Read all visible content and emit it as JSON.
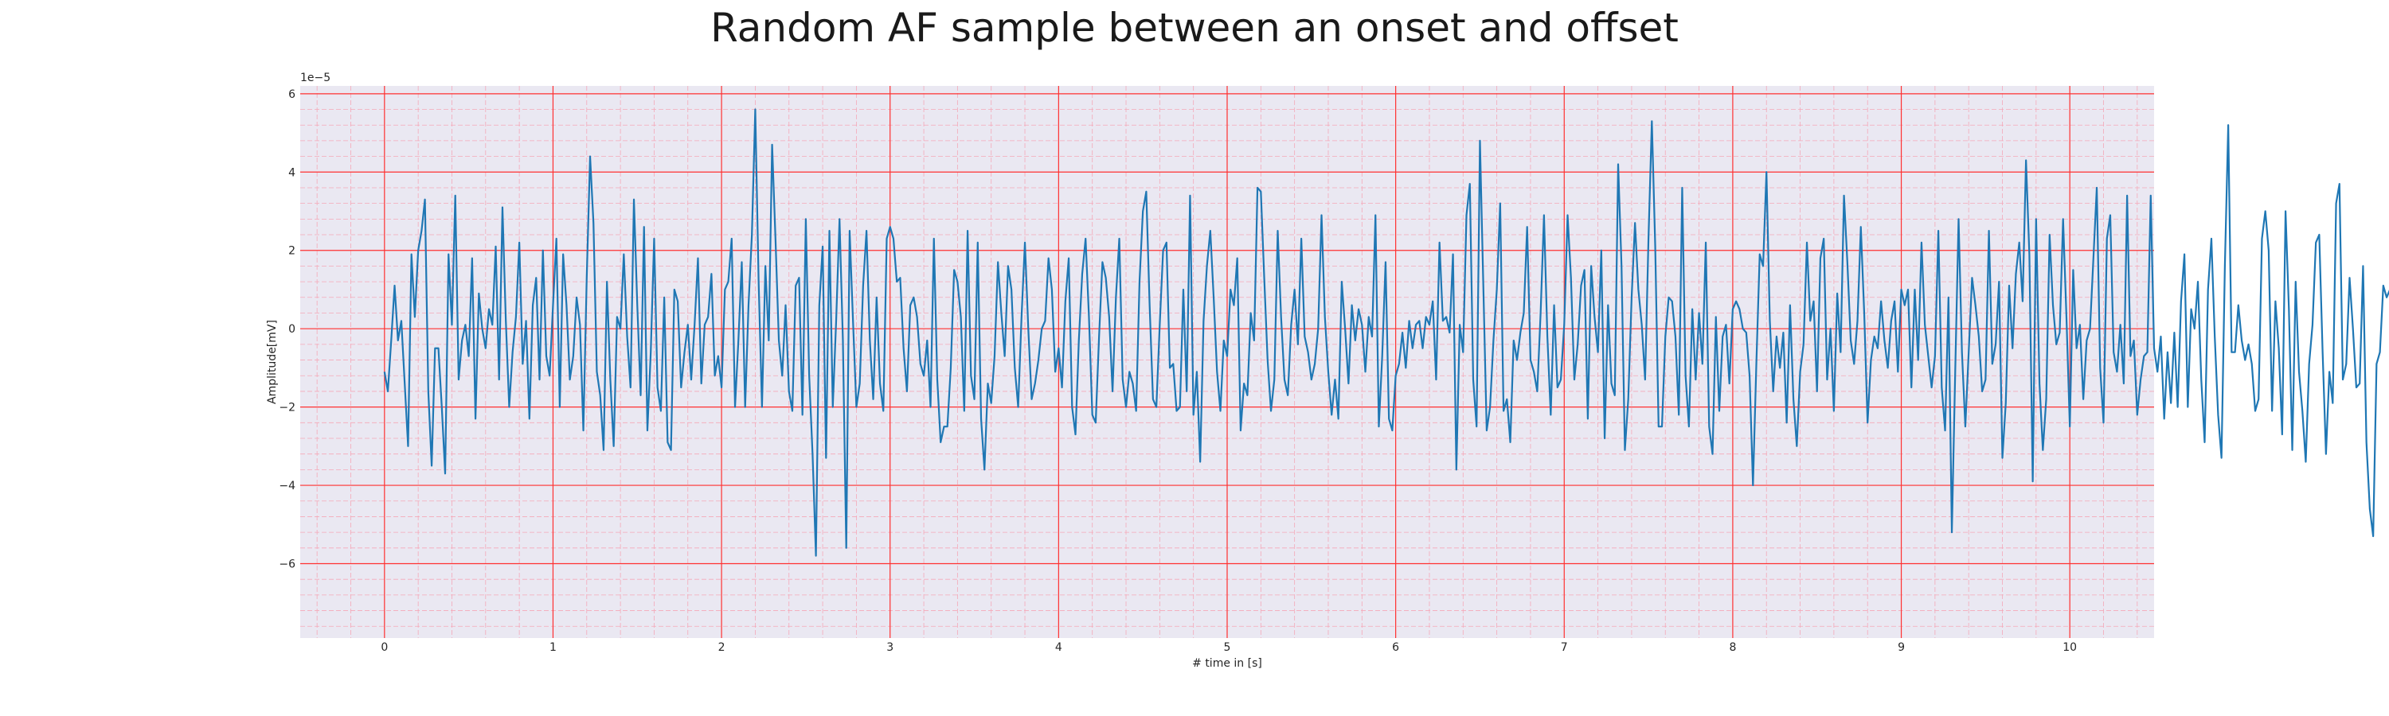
{
  "chart_data": {
    "type": "line",
    "title": "Random AF sample between an onset and offset",
    "xlabel": "# time in [s]",
    "ylabel": "Amplitude[mV]",
    "y_offset_text": "1e−5",
    "xlim": [
      -0.5,
      10.5
    ],
    "ylim": [
      -7.9,
      6.2
    ],
    "x_ticks": [
      0,
      1,
      2,
      3,
      4,
      5,
      6,
      7,
      8,
      9,
      10
    ],
    "y_ticks": [
      -6,
      -4,
      -2,
      0,
      2,
      4,
      6
    ],
    "y_tick_labels": [
      "−6",
      "−4",
      "−2",
      "0",
      "2",
      "4",
      "6"
    ],
    "grid": "major and minor",
    "series": [
      {
        "x_start": 0,
        "x_step": 0.02,
        "values": [
          -1.1,
          -1.6,
          -0.3,
          1.1,
          -0.3,
          0.2,
          -1.4,
          -3.0,
          1.9,
          0.3,
          2.0,
          2.5,
          3.3,
          -1.6,
          -3.5,
          -0.5,
          -0.5,
          -2.0,
          -3.7,
          1.9,
          0.1,
          3.4,
          -1.3,
          -0.3,
          0.1,
          -0.7,
          1.8,
          -2.3,
          0.9,
          0.0,
          -0.5,
          0.5,
          0.1,
          2.1,
          -1.3,
          3.1,
          0.2,
          -2.0,
          -0.6,
          0.3,
          2.2,
          -0.9,
          0.2,
          -2.3,
          0.6,
          1.3,
          -1.3,
          2.0,
          -0.7,
          -1.2,
          0.6,
          2.3,
          -2.0,
          1.9,
          0.6,
          -1.3,
          -0.7,
          0.8,
          0.1,
          -2.6,
          1.3,
          4.4,
          2.7,
          -1.1,
          -1.7,
          -3.1,
          1.2,
          -1.3,
          -3.0,
          0.3,
          0.0,
          1.9,
          -0.2,
          -1.5,
          3.3,
          0.6,
          -1.7,
          2.6,
          -2.6,
          -0.6,
          2.3,
          -1.5,
          -2.1,
          0.8,
          -2.9,
          -3.1,
          1.0,
          0.7,
          -1.5,
          -0.6,
          0.1,
          -1.3,
          0.1,
          1.8,
          -1.4,
          0.1,
          0.3,
          1.4,
          -1.2,
          -0.7,
          -1.5,
          1.0,
          1.2,
          2.3,
          -2.0,
          -0.3,
          1.7,
          -2.0,
          0.6,
          2.4,
          5.6,
          1.2,
          -2.0,
          1.6,
          -0.3,
          4.7,
          2.3,
          -0.3,
          -1.2,
          0.6,
          -1.6,
          -2.1,
          1.1,
          1.3,
          -2.2,
          2.8,
          -1.2,
          -3.2,
          -5.8,
          0.6,
          2.1,
          -3.3,
          2.5,
          -2.0,
          0.2,
          2.8,
          -0.3,
          -5.6,
          2.5,
          0.2,
          -2.0,
          -1.4,
          1.1,
          2.5,
          -0.3,
          -1.8,
          0.8,
          -1.4,
          -2.1,
          2.3,
          2.6,
          2.3,
          1.2,
          1.3,
          -0.5,
          -1.6,
          0.6,
          0.8,
          0.3,
          -0.9,
          -1.2,
          -0.3,
          -2.0,
          2.3,
          -1.3,
          -2.9,
          -2.5,
          -2.5,
          -1.0,
          1.5,
          1.2,
          0.3,
          -2.1,
          2.5,
          -1.2,
          -1.8,
          2.2,
          -2.3,
          -3.6,
          -1.4,
          -1.9,
          -0.7,
          1.7,
          0.4,
          -0.7,
          1.6,
          1.0,
          -1.0,
          -2.0,
          0.3,
          2.2,
          0.0,
          -1.8,
          -1.4,
          -0.8,
          0.0,
          0.2,
          1.8,
          1.0,
          -1.1,
          -0.5,
          -1.5,
          0.7,
          1.8,
          -2.0,
          -2.7,
          -0.3,
          1.4,
          2.3,
          0.3,
          -2.2,
          -2.4,
          -0.2,
          1.7,
          1.3,
          0.3,
          -1.6,
          0.8,
          2.3,
          -1.3,
          -2.0,
          -1.1,
          -1.4,
          -2.1,
          1.2,
          3.0,
          3.5,
          0.6,
          -1.8,
          -2.0,
          0.1,
          2.0,
          2.2,
          -1.0,
          -0.9,
          -2.1,
          -2.0,
          1.0,
          -1.6,
          3.4,
          -2.2,
          -1.1,
          -3.4,
          0.2,
          1.6,
          2.5,
          0.8,
          -1.1,
          -2.1,
          -0.3,
          -0.7,
          1.0,
          0.6,
          1.8,
          -2.6,
          -1.4,
          -1.7,
          0.4,
          -0.3,
          3.6,
          3.5,
          1.3,
          -0.8,
          -2.1,
          -1.3,
          2.5,
          0.3,
          -1.3,
          -1.7,
          0.1,
          1.0,
          -0.4,
          2.3,
          -0.2,
          -0.6,
          -1.3,
          -0.9,
          0.0,
          2.9,
          0.3,
          -1.1,
          -2.2,
          -1.3,
          -2.3,
          1.2,
          0.0,
          -1.4,
          0.6,
          -0.3,
          0.5,
          0.1,
          -1.1,
          0.3,
          -0.2,
          2.9,
          -2.5,
          -0.7,
          1.7,
          -2.3,
          -2.6,
          -1.2,
          -0.9,
          -0.1,
          -1.0,
          0.2,
          -0.5,
          0.1,
          0.2,
          -0.5,
          0.3,
          0.1,
          0.7,
          -1.3,
          2.2,
          0.2,
          0.3,
          -0.1,
          1.9,
          -3.6,
          0.1,
          -0.6,
          2.9,
          3.7,
          -1.3,
          -2.5,
          4.8,
          1.1,
          -2.6,
          -2.0,
          -0.3,
          1.0,
          3.2,
          -2.1,
          -1.8,
          -2.9,
          -0.3,
          -0.8,
          -0.1,
          0.4,
          2.6,
          -0.8,
          -1.1,
          -1.6,
          0.4,
          2.9,
          -0.2,
          -2.2,
          0.6,
          -1.5,
          -1.3,
          0.1,
          2.9,
          1.3,
          -1.3,
          -0.4,
          1.1,
          1.5,
          -2.3,
          1.6,
          0.3,
          -0.6,
          2.0,
          -2.8,
          0.6,
          -1.4,
          -1.7,
          4.2,
          1.6,
          -3.1,
          -1.8,
          0.8,
          2.7,
          1.0,
          0.1,
          -1.3,
          2.3,
          5.3,
          2.1,
          -2.5,
          -2.5,
          -0.2,
          0.8,
          0.7,
          -0.2,
          -2.2,
          3.6,
          -1.2,
          -2.5,
          0.5,
          -1.3,
          0.4,
          -0.9,
          2.2,
          -2.5,
          -3.2,
          0.3,
          -2.1,
          -0.2,
          0.1,
          -1.4,
          0.5,
          0.7,
          0.5,
          0.0,
          -0.1,
          -1.2,
          -4.0,
          -0.9,
          1.9,
          1.6,
          4.0,
          0.2,
          -1.6,
          -0.2,
          -1.0,
          -0.1,
          -2.4,
          0.6,
          -1.8,
          -3.0,
          -1.1,
          -0.4,
          2.2,
          0.2,
          0.7,
          -1.6,
          1.8,
          2.3,
          -1.3,
          0.0,
          -2.1,
          0.9,
          -0.6,
          3.4,
          1.7,
          -0.3,
          -0.9,
          0.2,
          2.6,
          0.4,
          -2.4,
          -0.8,
          -0.2,
          -0.5,
          0.7,
          -0.3,
          -1.0,
          0.2,
          0.7,
          -1.1,
          1.0,
          0.6,
          1.0,
          -1.5,
          1.0,
          -0.8,
          2.2,
          0.1,
          -0.7,
          -1.5,
          -0.7,
          2.5,
          -1.5,
          -2.6,
          0.8,
          -5.2,
          -1.1,
          2.8,
          -0.6,
          -2.5,
          -0.6,
          1.3,
          0.6,
          -0.2,
          -1.6,
          -1.3,
          2.5,
          -0.9,
          -0.4,
          1.2,
          -3.3,
          -1.9,
          1.1,
          -0.5,
          1.4,
          2.2,
          0.7,
          4.3,
          1.9,
          -3.9,
          2.8,
          -1.4,
          -3.1,
          -1.8,
          2.4,
          0.6,
          -0.4,
          -0.1,
          2.8,
          0.3,
          -2.5,
          1.5,
          -0.5,
          0.1,
          -1.8,
          -0.3,
          0.0,
          1.8,
          3.6,
          -1.0,
          -2.4,
          2.3,
          2.9,
          -0.6,
          -1.1,
          0.1,
          -1.4,
          3.4,
          -0.7,
          -0.3,
          -2.2,
          -1.3,
          -0.7,
          -0.6,
          3.4,
          -0.5,
          -1.1,
          -0.2,
          -2.3,
          -0.6,
          -1.9,
          -0.1,
          -2.0,
          0.7,
          1.9,
          -2.0,
          0.5,
          0.0,
          1.2,
          -1.3,
          -2.9,
          1.0,
          2.3,
          -0.2,
          -2.2,
          -3.3,
          1.6,
          5.2,
          -0.6,
          -0.6,
          0.6,
          -0.3,
          -0.8,
          -0.4,
          -0.9,
          -2.1,
          -1.8,
          2.3,
          3.0,
          2.0,
          -2.1,
          0.7,
          -0.5,
          -2.7,
          3.0,
          0.5,
          -3.1,
          1.2,
          -1.1,
          -2.1,
          -3.4,
          -0.9,
          0.1,
          2.2,
          2.4,
          -0.6,
          -3.2,
          -1.1,
          -1.9,
          3.2,
          3.7,
          -1.3,
          -0.9,
          1.3,
          0.0,
          -1.5,
          -1.4,
          1.6,
          -2.9,
          -4.6,
          -5.3,
          -0.9,
          -0.6,
          1.1,
          0.8,
          1.0,
          0.9,
          1.3,
          1.0,
          -0.7,
          0.8,
          0.5,
          -0.6,
          0.2,
          -1.0,
          -2.1,
          0.3,
          0.5,
          1.7,
          0.0,
          0.9,
          -2.2,
          -1.4,
          -1.4,
          2.4,
          1.1,
          -1.2,
          -0.4,
          -0.7,
          0.5,
          1.0,
          0.3,
          -1.0,
          0.8,
          -0.7,
          -2.4,
          -1.0,
          -1.1,
          -3.5,
          1.8,
          4.0,
          -0.4,
          -2.6,
          -0.1,
          -0.5,
          -1.0,
          1.7,
          1.0,
          1.2,
          -1.7,
          -0.4,
          2.2,
          -2.4,
          -0.4,
          -0.6,
          -3.0,
          3.2,
          0.6,
          -0.2,
          -0.2,
          2.2,
          1.1,
          -2.1,
          1.4,
          -2.3,
          0.5,
          1.5,
          -2.0,
          -0.6,
          0.6,
          -1.1,
          -1.2,
          1.6,
          -2.3,
          -0.1,
          2.3,
          -1.6,
          -1.9,
          -0.2,
          0.3,
          2.1,
          -0.5,
          -2.0,
          1.3,
          0.6,
          0.0,
          -1.3,
          -3.0,
          -1.4,
          2.4,
          -0.5,
          -1.7,
          0.2,
          -2.8,
          -1.3,
          -0.3,
          2.1,
          -0.6,
          0.2,
          -2.7,
          2.4,
          -2.0,
          -0.7,
          0.5,
          3.4,
          0.1,
          0.5,
          -0.2,
          1.6,
          0.9,
          0.4,
          -0.4,
          -1.0,
          0.8,
          0.9,
          -2.0,
          0.6,
          -1.6,
          0.4,
          1.0,
          -0.9,
          -0.1,
          0.2,
          0.0,
          -1.6,
          -0.1,
          -1.8,
          -1.2,
          1.3,
          2.4,
          -0.2,
          -1.6,
          1.3,
          -0.2,
          1.6,
          -0.6,
          -0.9,
          0.4,
          -2.5,
          -1.1,
          2.5,
          0.4,
          0.0,
          -1.0,
          -1.8,
          -1.2,
          0.1,
          0.4,
          1.1,
          0.8,
          4.2,
          -0.6,
          -1.9,
          -0.3,
          -2.7,
          0.0,
          2.3,
          -1.9,
          2.3,
          -2.5,
          -0.3,
          1.6,
          -1.4,
          0.7,
          -2.2,
          1.6,
          -1.0,
          -2.5,
          1.6,
          -0.4,
          0.7,
          2.2,
          -0.5,
          0.1,
          -2.0,
          -2.4,
          0.5,
          1.8,
          2.1,
          -1.5,
          0.4,
          0.0,
          1.6,
          0.1,
          -0.6,
          -1.2,
          0.7,
          1.1,
          -2.0,
          1.0,
          -1.5,
          3.4,
          1.3,
          0.3,
          -0.2,
          0.8,
          -2.0,
          0.4,
          0.7,
          2.1,
          0.1,
          -0.6,
          1.1,
          -0.4,
          -1.2,
          -0.6,
          0.0,
          1.4,
          -0.2,
          0.1,
          0.4,
          -1.9,
          0.1,
          2.6,
          1.2,
          2.5,
          -0.2,
          -1.7,
          -0.9,
          -0.8,
          0.7,
          -1.3,
          4.1,
          2.1,
          2.2,
          0.4,
          1.6,
          0.2,
          0.7,
          -0.5,
          -0.4,
          0.0,
          0.1,
          0.0,
          3.1,
          4.6,
          3.2,
          -3.6,
          -7.2,
          -3.7,
          -0.4
        ]
      }
    ],
    "colors": {
      "line": "#1f77b4",
      "plot_background": "#eae8f2",
      "major_grid": "#ff3030",
      "minor_grid": "#f5a8b8",
      "text": "#262626"
    }
  }
}
